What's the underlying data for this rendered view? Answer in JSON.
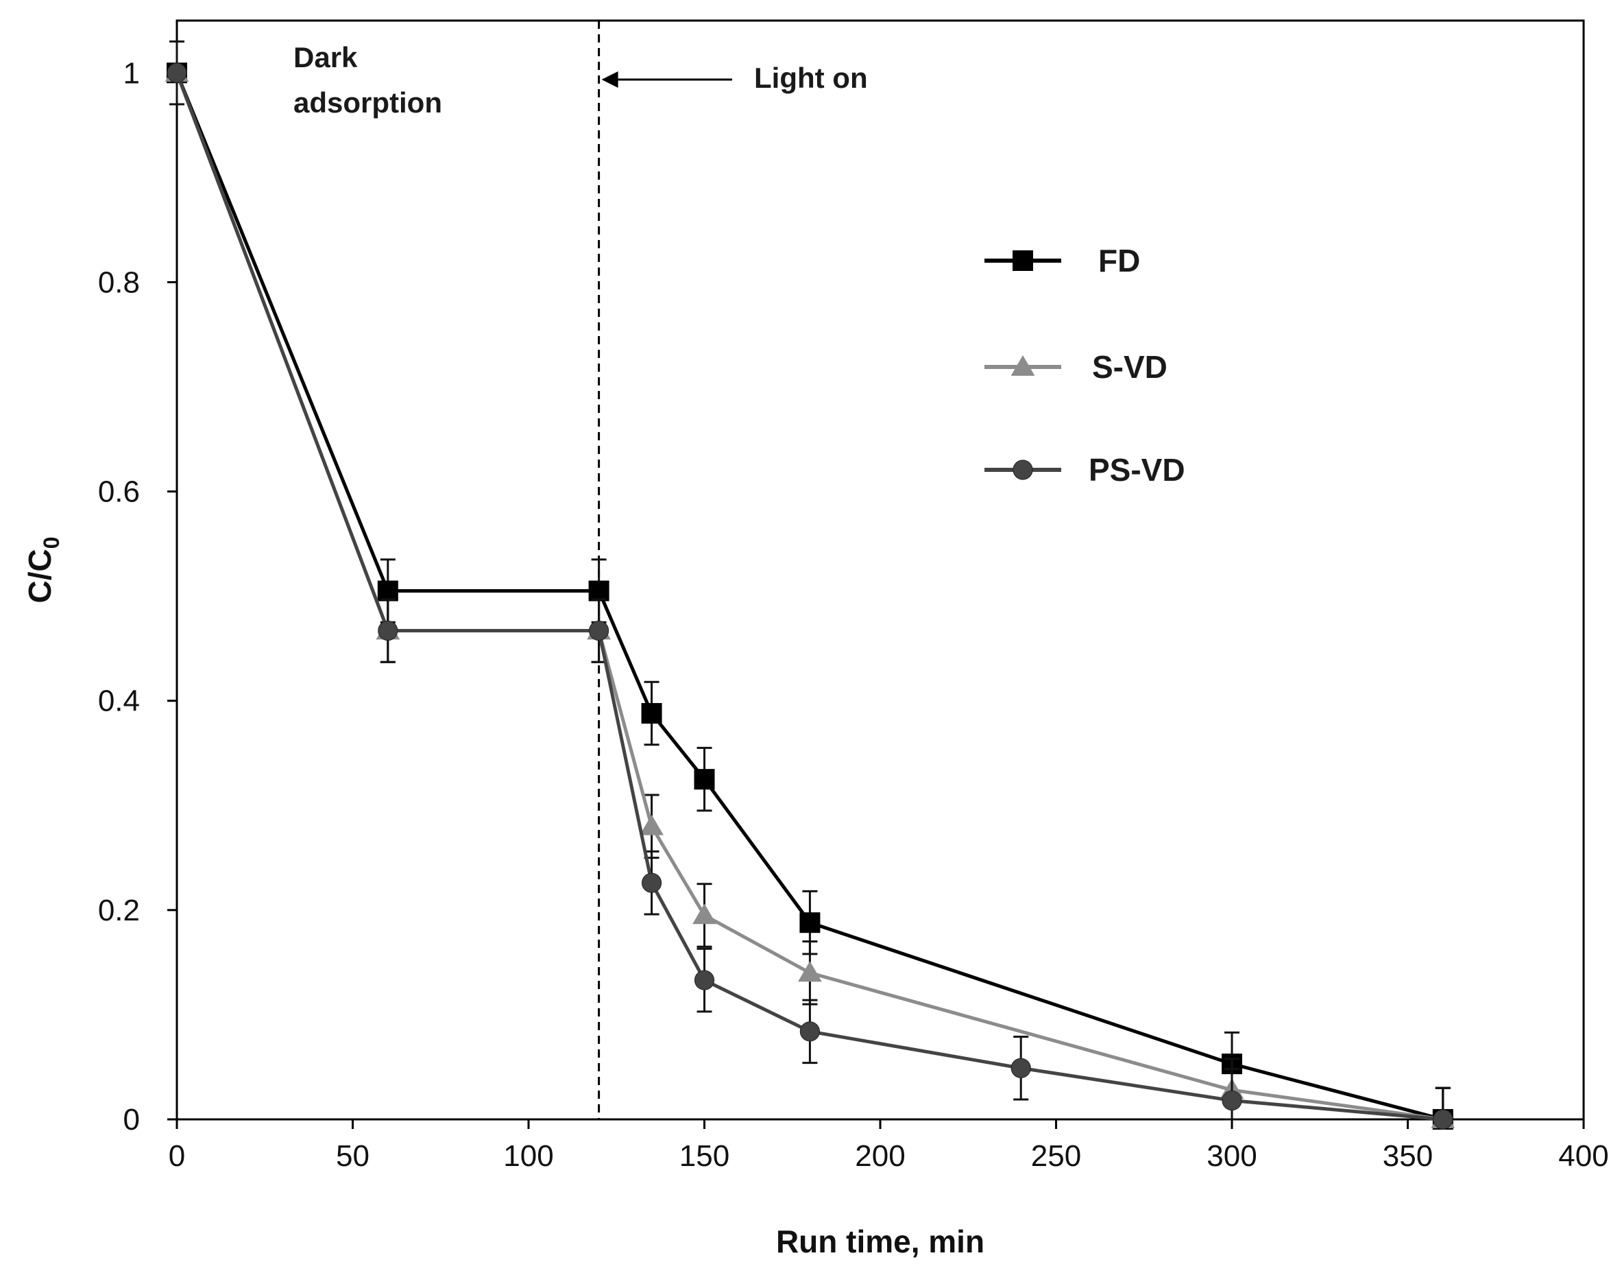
{
  "chart_data": {
    "type": "line",
    "xlabel": "Run time, min",
    "ylabel": "C/C",
    "ylabel_sub": "0",
    "xlim": [
      0,
      400
    ],
    "ylim": [
      0,
      1.05
    ],
    "xticks": [
      0,
      50,
      100,
      150,
      200,
      250,
      300,
      350,
      400
    ],
    "yticks": [
      0,
      0.2,
      0.4,
      0.6,
      0.8,
      1
    ],
    "xtick_labels": [
      "0",
      "50",
      "100",
      "150",
      "200",
      "250",
      "300",
      "350",
      "400"
    ],
    "ytick_labels": [
      "0",
      "0.2",
      "0.4",
      "0.6",
      "0.8",
      "1"
    ],
    "grid": false,
    "legend_position": "right",
    "annotations": {
      "dark": "Dark adsorption",
      "dark_line1": "Dark",
      "dark_line2": "adsorption",
      "light": "Light on",
      "light_on_x": 120
    },
    "series": [
      {
        "name": "FD",
        "marker": "square",
        "color": "#000000",
        "x": [
          0,
          60,
          120,
          135,
          150,
          180,
          300,
          360
        ],
        "y": [
          1.0,
          0.505,
          0.505,
          0.388,
          0.325,
          0.188,
          0.053,
          0.0
        ],
        "err": [
          0.03,
          0.03,
          0.03,
          0.03,
          0.03,
          0.03,
          0.03,
          0.03
        ]
      },
      {
        "name": "S-VD",
        "marker": "triangle",
        "color": "#8c8c8c",
        "x": [
          0,
          60,
          120,
          135,
          150,
          180,
          300,
          360
        ],
        "y": [
          1.0,
          0.467,
          0.467,
          0.28,
          0.195,
          0.14,
          0.028,
          0.0
        ],
        "err": [
          0.03,
          0.03,
          0.03,
          0.03,
          0.03,
          0.03,
          0.03,
          0.03
        ]
      },
      {
        "name": "PS-VD",
        "marker": "circle",
        "color": "#444444",
        "x": [
          0,
          60,
          120,
          135,
          150,
          180,
          240,
          300,
          360
        ],
        "y": [
          1.0,
          0.467,
          0.467,
          0.226,
          0.133,
          0.084,
          0.049,
          0.018,
          0.0
        ],
        "err": [
          0.03,
          0.03,
          0.03,
          0.03,
          0.03,
          0.03,
          0.03,
          0.03,
          0.03
        ]
      }
    ]
  }
}
